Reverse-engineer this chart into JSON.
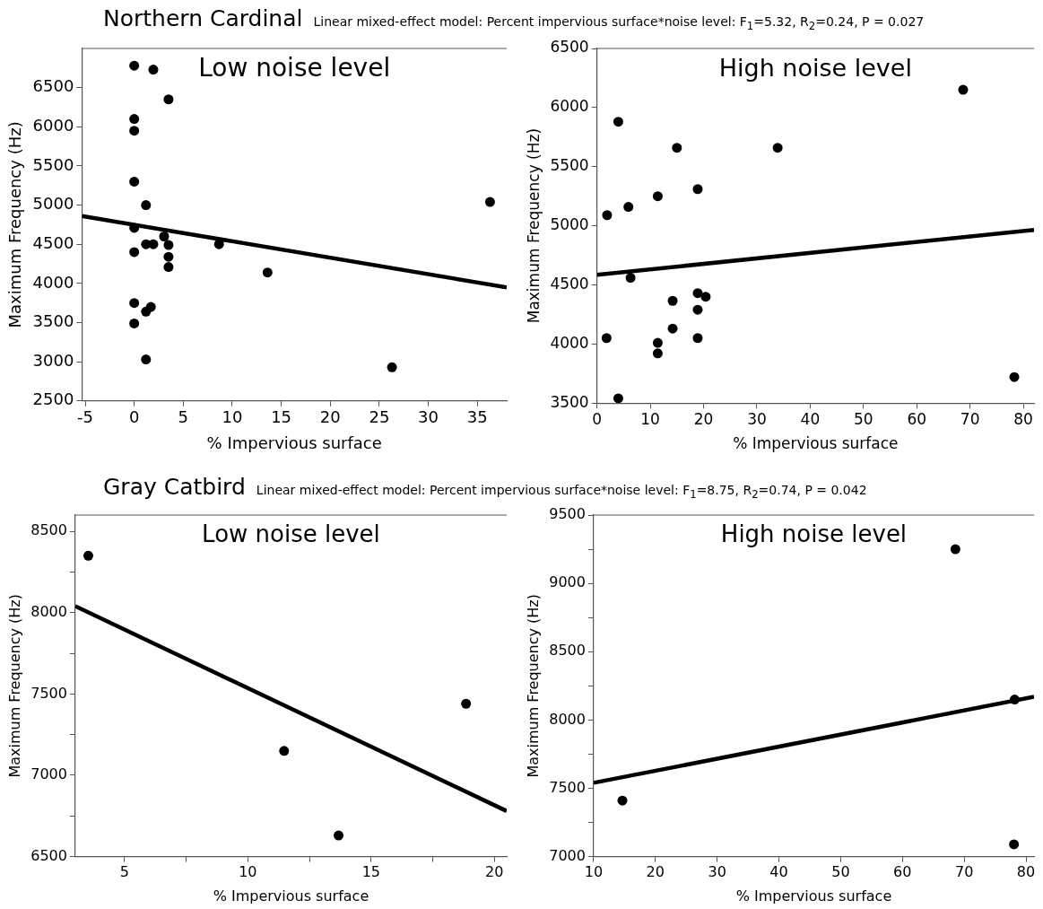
{
  "chart_data": [
    {
      "type": "scatter",
      "title": "Northern Cardinal",
      "subtitle": "Linear mixed-effect model: Percent impervious surface*noise level: F$_{1}$=5.32, R$_{2}$=0.24, P = 0.027",
      "annotations": [
        "Low noise level"
      ],
      "xlabel": "% Impervious surface",
      "ylabel": "Maximum Frequency (Hz)",
      "xlim": [
        -5.33,
        38
      ],
      "ylim": [
        2500,
        7000
      ],
      "xticks": [
        -5,
        0,
        5,
        10,
        15,
        20,
        25,
        30,
        35
      ],
      "yticks": [
        2500,
        3000,
        3500,
        4000,
        4500,
        5000,
        5500,
        6000,
        6500
      ],
      "grid": false,
      "legend": false,
      "series": [
        {
          "marker": "circle",
          "color": "#000000",
          "x": [
            0,
            1.95,
            3.5,
            0,
            0,
            0,
            1.2,
            36.3,
            0,
            3.05,
            1.2,
            1.95,
            3.5,
            8.65,
            3.5,
            3.5,
            0,
            13.6,
            0,
            1.2,
            1.7,
            0,
            1.2,
            26.3
          ],
          "values": [
            6780,
            6730,
            6350,
            6100,
            5950,
            5300,
            5000,
            5040,
            4710,
            4600,
            4500,
            4500,
            4490,
            4500,
            4340,
            4210,
            4400,
            4140,
            3750,
            3640,
            3700,
            3490,
            3030,
            2930
          ]
        },
        {
          "type": "line",
          "marker": "none",
          "color": "#000000",
          "x": [
            -5.33,
            38
          ],
          "values": [
            4860,
            3950
          ]
        }
      ]
    },
    {
      "type": "scatter",
      "annotations": [
        "High noise level"
      ],
      "xlabel": "% Impervious surface",
      "ylabel": "Maximum Frequency (Hz)",
      "xlim": [
        0,
        82
      ],
      "ylim": [
        3500,
        6500
      ],
      "xticks": [
        0,
        10,
        20,
        30,
        40,
        50,
        60,
        70,
        80
      ],
      "yticks": [
        3500,
        4000,
        4500,
        5000,
        5500,
        6000,
        6500
      ],
      "grid": false,
      "legend": false,
      "series": [
        {
          "marker": "circle",
          "color": "#000000",
          "x": [
            4.0,
            68.7,
            15.0,
            33.9,
            18.9,
            11.4,
            5.9,
            1.9,
            6.3,
            18.9,
            20.4,
            14.2,
            18.9,
            14.2,
            1.8,
            18.9,
            11.4,
            11.4,
            4.0,
            78.3
          ],
          "values": [
            5880,
            6150,
            5660,
            5660,
            5310,
            5250,
            5160,
            5090,
            4560,
            4430,
            4400,
            4365,
            4290,
            4130,
            4050,
            4050,
            4010,
            3920,
            3540,
            3720
          ]
        },
        {
          "type": "line",
          "marker": "none",
          "color": "#000000",
          "x": [
            0,
            82
          ],
          "values": [
            4585,
            4965
          ]
        }
      ]
    },
    {
      "type": "scatter",
      "title": "Gray Catbird",
      "subtitle": "Linear mixed-effect model: Percent impervious surface*noise level: F$_{1}$=8.75, R$_{2}$=0.74, P = 0.042",
      "annotations": [
        "Low noise level"
      ],
      "xlabel": "% Impervious surface",
      "ylabel": "Maximum Frequency (Hz)",
      "xlim": [
        3,
        20.5
      ],
      "ylim": [
        6500,
        8600
      ],
      "xticks": [
        5,
        {
          "value": 7.5,
          "label": null
        },
        10,
        {
          "value": 12.5,
          "label": null
        },
        15,
        {
          "value": 17.5,
          "label": null
        },
        20
      ],
      "yticks": [
        6500,
        {
          "value": 6750,
          "label": null
        },
        7000,
        {
          "value": 7250,
          "label": null
        },
        7500,
        {
          "value": 7750,
          "label": null
        },
        8000,
        {
          "value": 8250,
          "label": null
        },
        8500
      ],
      "grid": false,
      "legend": false,
      "series": [
        {
          "marker": "circle",
          "color": "#000000",
          "x": [
            3.53,
            11.47,
            13.68,
            18.85
          ],
          "values": [
            8350,
            7150,
            6630,
            7440
          ]
        },
        {
          "type": "line",
          "marker": "none",
          "color": "#000000",
          "x": [
            3,
            20.5
          ],
          "values": [
            8040,
            6780
          ]
        }
      ]
    },
    {
      "type": "scatter",
      "annotations": [
        "High noise level"
      ],
      "xlabel": "% Impervious surface",
      "ylabel": "Maximum Frequency (Hz)",
      "xlim": [
        10,
        81.3
      ],
      "ylim": [
        7000,
        9500
      ],
      "xticks": [
        10,
        20,
        30,
        40,
        50,
        60,
        70,
        80
      ],
      "yticks": [
        7000,
        {
          "value": 7250,
          "label": null
        },
        7500,
        {
          "value": 7750,
          "label": null
        },
        8000,
        {
          "value": 8250,
          "label": null
        },
        8500,
        {
          "value": 8750,
          "label": null
        },
        9000,
        {
          "value": 9250,
          "label": null
        },
        9500
      ],
      "grid": false,
      "legend": false,
      "series": [
        {
          "marker": "circle",
          "color": "#000000",
          "x": [
            14.66,
            68.57,
            78.16,
            78.05
          ],
          "values": [
            7410,
            9250,
            8150,
            7090
          ]
        },
        {
          "type": "line",
          "marker": "none",
          "color": "#000000",
          "x": [
            10,
            81.3
          ],
          "values": [
            7540,
            8170
          ]
        }
      ]
    }
  ]
}
